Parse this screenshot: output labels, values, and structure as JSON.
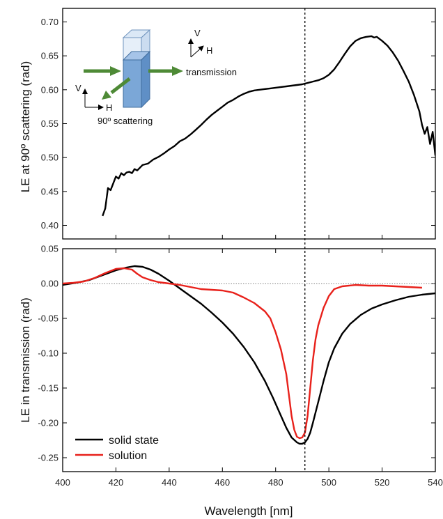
{
  "chart_data": [
    {
      "type": "line",
      "ylabel": "LE at 90º scattering (rad)",
      "xlim": [
        400,
        540
      ],
      "ylim": [
        0.38,
        0.72
      ],
      "xticks": [
        400,
        420,
        440,
        460,
        480,
        500,
        520,
        540
      ],
      "yticks": [
        "0.40",
        "0.45",
        "0.50",
        "0.55",
        "0.60",
        "0.65",
        "0.70"
      ],
      "series": [
        {
          "color": "#000000",
          "x": [
            415,
            416,
            417,
            418,
            419,
            420,
            421,
            422,
            423,
            424,
            425,
            426,
            427,
            428,
            429,
            430,
            432,
            434,
            436,
            438,
            440,
            442,
            444,
            446,
            448,
            450,
            452,
            454,
            456,
            458,
            460,
            462,
            464,
            466,
            468,
            470,
            472,
            474,
            476,
            478,
            480,
            482,
            484,
            486,
            488,
            490,
            492,
            494,
            496,
            498,
            500,
            502,
            504,
            506,
            508,
            510,
            512,
            514,
            516,
            517,
            518,
            519,
            520,
            522,
            524,
            526,
            528,
            530,
            532,
            534,
            535,
            536,
            537,
            538,
            539,
            540
          ],
          "y": [
            0.414,
            0.425,
            0.455,
            0.452,
            0.462,
            0.472,
            0.469,
            0.477,
            0.474,
            0.478,
            0.479,
            0.477,
            0.483,
            0.481,
            0.485,
            0.489,
            0.491,
            0.497,
            0.501,
            0.506,
            0.512,
            0.517,
            0.524,
            0.528,
            0.534,
            0.541,
            0.548,
            0.556,
            0.563,
            0.569,
            0.575,
            0.581,
            0.585,
            0.59,
            0.594,
            0.597,
            0.599,
            0.6,
            0.601,
            0.602,
            0.603,
            0.604,
            0.605,
            0.606,
            0.607,
            0.608,
            0.61,
            0.612,
            0.614,
            0.617,
            0.622,
            0.63,
            0.641,
            0.653,
            0.664,
            0.672,
            0.676,
            0.678,
            0.679,
            0.677,
            0.678,
            0.675,
            0.672,
            0.665,
            0.655,
            0.643,
            0.628,
            0.612,
            0.592,
            0.568,
            0.548,
            0.535,
            0.545,
            0.52,
            0.538,
            0.503
          ]
        }
      ],
      "inset": {
        "v_label": "V",
        "h_label": "H",
        "transmission_label": "transmission",
        "scattering_label": "90º scattering",
        "arrow_color": "#4e8a36",
        "cuvette_color": "#7ba7d7"
      }
    },
    {
      "type": "line",
      "xlabel": "Wavelength [nm]",
      "ylabel": "LE in transmission (rad)",
      "xlim": [
        400,
        540
      ],
      "ylim": [
        -0.27,
        0.05
      ],
      "xticks": [
        400,
        420,
        440,
        460,
        480,
        500,
        520,
        540
      ],
      "yticks": [
        "0.05",
        "0.00",
        "-0.05",
        "-0.10",
        "-0.15",
        "-0.20",
        "-0.25"
      ],
      "reference_x": 491,
      "zero_line": true,
      "legend": "bottom-left",
      "series": [
        {
          "name": "solid state",
          "color": "#000000",
          "x": [
            400,
            405,
            410,
            415,
            420,
            424,
            427,
            430,
            433,
            436,
            440,
            444,
            448,
            452,
            456,
            460,
            464,
            468,
            472,
            476,
            479,
            482,
            484,
            486,
            488,
            489,
            490,
            491,
            492,
            493,
            494,
            496,
            498,
            500,
            502,
            505,
            508,
            512,
            516,
            520,
            525,
            530,
            535,
            540
          ],
          "y": [
            -0.002,
            0.001,
            0.005,
            0.012,
            0.019,
            0.023,
            0.025,
            0.024,
            0.02,
            0.014,
            0.004,
            -0.007,
            -0.018,
            -0.029,
            -0.042,
            -0.056,
            -0.072,
            -0.091,
            -0.113,
            -0.14,
            -0.164,
            -0.19,
            -0.207,
            -0.221,
            -0.228,
            -0.23,
            -0.23,
            -0.228,
            -0.223,
            -0.214,
            -0.2,
            -0.17,
            -0.14,
            -0.113,
            -0.093,
            -0.072,
            -0.058,
            -0.045,
            -0.036,
            -0.03,
            -0.024,
            -0.019,
            -0.016,
            -0.014
          ]
        },
        {
          "name": "solution",
          "color": "#e8211b",
          "x": [
            400,
            404,
            408,
            412,
            416,
            420,
            423,
            426,
            428,
            430,
            433,
            436,
            440,
            444,
            448,
            452,
            456,
            460,
            464,
            468,
            472,
            476,
            478,
            480,
            482,
            484,
            485,
            486,
            487,
            488,
            489,
            490,
            491,
            492,
            493,
            494,
            495,
            496,
            498,
            500,
            502,
            505,
            510,
            515,
            520,
            525,
            530,
            535
          ],
          "y": [
            0.0,
            0.001,
            0.003,
            0.008,
            0.015,
            0.021,
            0.022,
            0.02,
            0.014,
            0.009,
            0.005,
            0.002,
            0.0,
            -0.002,
            -0.005,
            -0.008,
            -0.009,
            -0.01,
            -0.013,
            -0.02,
            -0.028,
            -0.04,
            -0.05,
            -0.07,
            -0.095,
            -0.13,
            -0.16,
            -0.19,
            -0.21,
            -0.22,
            -0.222,
            -0.221,
            -0.214,
            -0.19,
            -0.15,
            -0.11,
            -0.08,
            -0.06,
            -0.035,
            -0.018,
            -0.008,
            -0.004,
            -0.002,
            -0.003,
            -0.003,
            -0.004,
            -0.005,
            -0.006
          ]
        }
      ]
    }
  ]
}
